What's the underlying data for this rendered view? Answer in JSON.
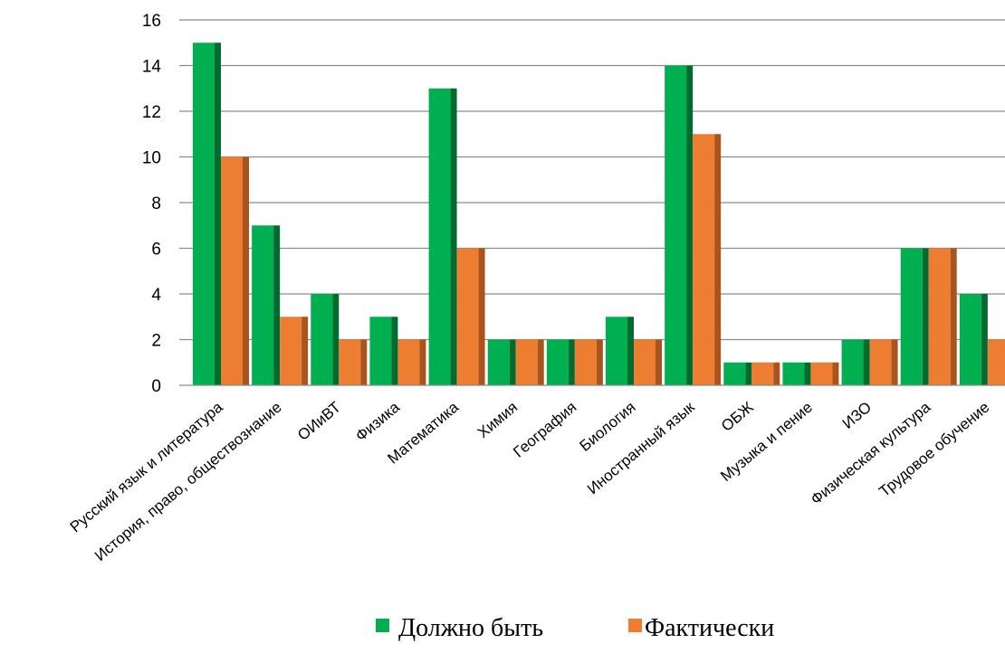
{
  "chart_data": {
    "type": "bar",
    "categories": [
      "Русский язык и литература",
      "История, право, обществознание",
      "ОИиВТ",
      "Физика",
      "Математика",
      "Химия",
      "География",
      "Биология",
      "Иностранный язык",
      "ОБЖ",
      "Музыка и пение",
      "ИЗО",
      "Физическая культура",
      "Трудовое обучение"
    ],
    "series": [
      {
        "name": "Должно быть",
        "color": "#00b050",
        "shade": "#006b2f",
        "values": [
          15,
          7,
          4,
          3,
          13,
          2,
          2,
          3,
          14,
          1,
          1,
          2,
          6,
          4
        ]
      },
      {
        "name": "Фактически",
        "color": "#ed7d31",
        "shade": "#a8541c",
        "values": [
          10,
          3,
          2,
          2,
          6,
          2,
          2,
          2,
          11,
          1,
          1,
          2,
          6,
          2
        ]
      }
    ],
    "yticks": [
      "0",
      "2",
      "4",
      "6",
      "8",
      "10",
      "12",
      "14",
      "16"
    ],
    "ylim": [
      0,
      16
    ],
    "grid": true,
    "legend_position": "bottom"
  }
}
